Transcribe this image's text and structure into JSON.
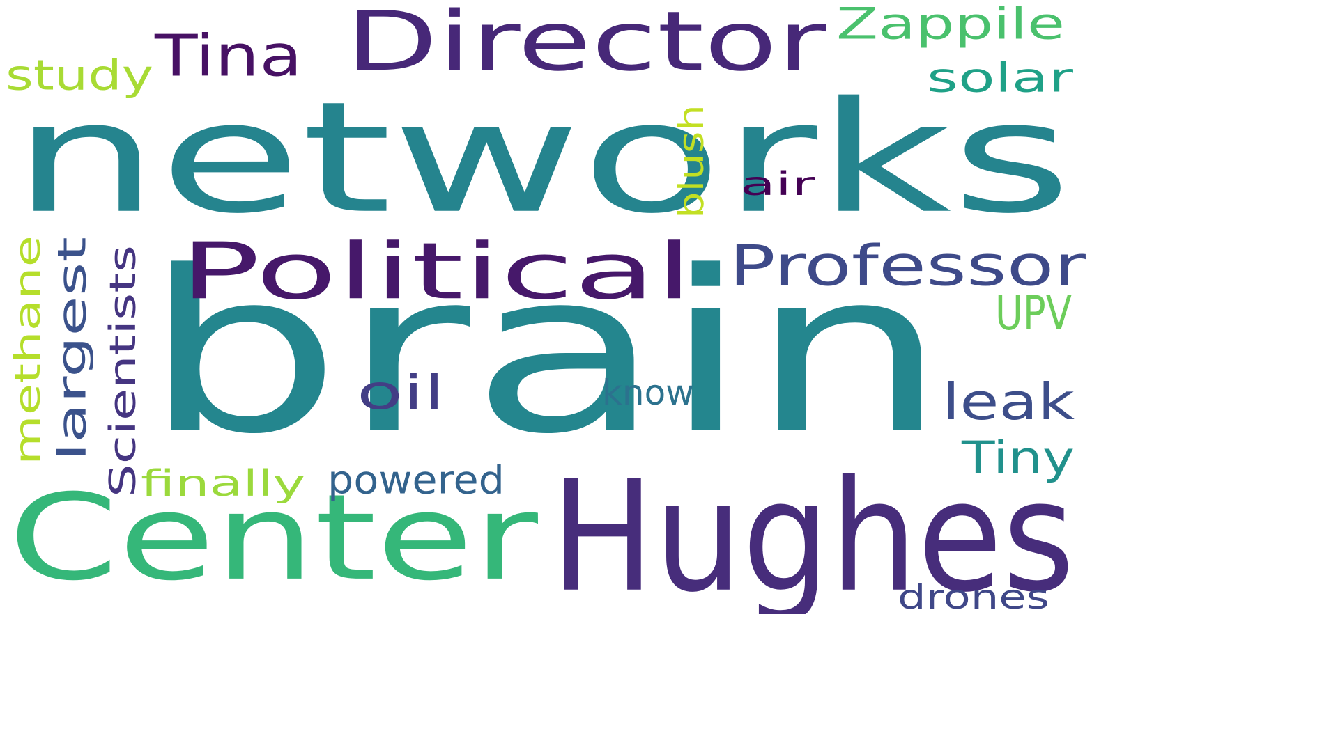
{
  "words": [
    {
      "id": "brain",
      "text": "brain",
      "color": "#24868e"
    },
    {
      "id": "networks",
      "text": "networks",
      "color": "#25848e"
    },
    {
      "id": "hughes",
      "text": "Hughes",
      "color": "#472d7b"
    },
    {
      "id": "center",
      "text": "Center",
      "color": "#35b779"
    },
    {
      "id": "director",
      "text": "Director",
      "color": "#472878"
    },
    {
      "id": "political",
      "text": "Political",
      "color": "#46186a"
    },
    {
      "id": "professor",
      "text": "Professor",
      "color": "#3e4a89"
    },
    {
      "id": "zappile",
      "text": "Zappile",
      "color": "#4ac16d"
    },
    {
      "id": "tina",
      "text": "Tina",
      "color": "#471164"
    },
    {
      "id": "study",
      "text": "study",
      "color": "#a8db34"
    },
    {
      "id": "solar",
      "text": "solar",
      "color": "#1fa187"
    },
    {
      "id": "upv",
      "text": "UPV",
      "color": "#6ccd5a"
    },
    {
      "id": "blush",
      "text": "blush",
      "color": "#c2df23"
    },
    {
      "id": "air",
      "text": "air",
      "color": "#440154"
    },
    {
      "id": "methane",
      "text": "methane",
      "color": "#b5de2b"
    },
    {
      "id": "largest",
      "text": "largest",
      "color": "#3b528b"
    },
    {
      "id": "scientists",
      "text": "Scientists",
      "color": "#453581"
    },
    {
      "id": "oil",
      "text": "oil",
      "color": "#433e85"
    },
    {
      "id": "know",
      "text": "know",
      "color": "#2c728e"
    },
    {
      "id": "leak",
      "text": "leak",
      "color": "#3d4e8a"
    },
    {
      "id": "tiny",
      "text": "Tiny",
      "color": "#21918c"
    },
    {
      "id": "finally",
      "text": "finally",
      "color": "#9bd93c"
    },
    {
      "id": "powered",
      "text": "powered",
      "color": "#33638d"
    },
    {
      "id": "drones",
      "text": "drones",
      "color": "#3f4788"
    }
  ]
}
